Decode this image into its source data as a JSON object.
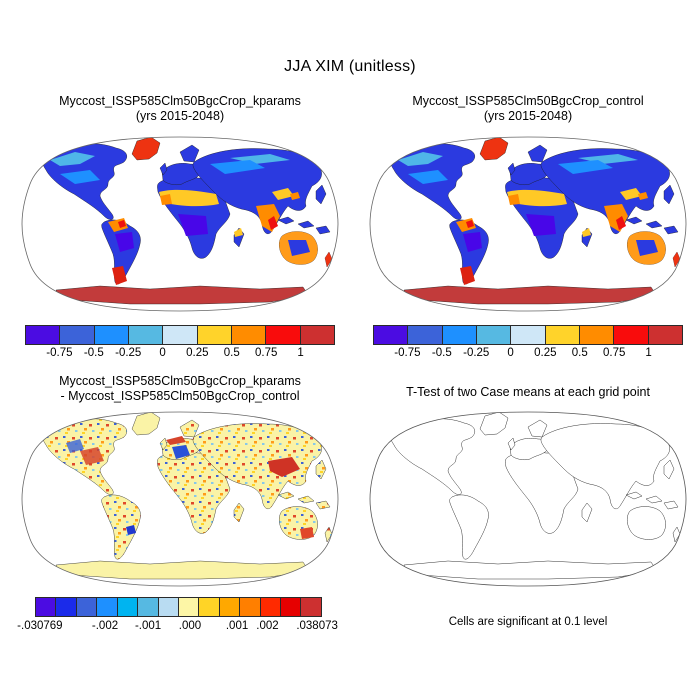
{
  "figure_title": "JJA XIM (unitless)",
  "panels": {
    "kparams": {
      "title": "Myccost_ISSP585Clm50BgcCrop_kparams",
      "subtitle": "(yrs 2015-2048)"
    },
    "control": {
      "title": "Myccost_ISSP585Clm50BgcCrop_control",
      "subtitle": "(yrs 2015-2048)"
    },
    "diff": {
      "title": "Myccost_ISSP585Clm50BgcCrop_kparams",
      "subtitle": "- Myccost_ISSP585Clm50BgcCrop_control"
    },
    "ttest": {
      "title": "T-Test of two Case means at each grid point",
      "caption": "Cells are significant at 0.1 level"
    }
  },
  "colorbars": {
    "main": {
      "colors": [
        "#4b0ce2",
        "#3c63d9",
        "#1e90ff",
        "#56b9e2",
        "#cfe7f7",
        "#ffd32a",
        "#ff8c00",
        "#f90c0c",
        "#cd3030"
      ],
      "ticks": [
        {
          "label": "-0.75",
          "pos": 0.111
        },
        {
          "label": "-0.5",
          "pos": 0.222
        },
        {
          "label": "-0.25",
          "pos": 0.333
        },
        {
          "label": "0",
          "pos": 0.444
        },
        {
          "label": "0.25",
          "pos": 0.556
        },
        {
          "label": "0.5",
          "pos": 0.667
        },
        {
          "label": "0.75",
          "pos": 0.778
        },
        {
          "label": "1",
          "pos": 0.889
        }
      ]
    },
    "diff": {
      "colors": [
        "#4b0ce2",
        "#1b2bea",
        "#3c63d9",
        "#1e90ff",
        "#00b4f0",
        "#56b9e2",
        "#b9dcf2",
        "#fdf6a6",
        "#ffd426",
        "#ffa800",
        "#ff7f00",
        "#ff2a00",
        "#e60000",
        "#cd3030"
      ],
      "ticks": [
        {
          "label": "-.030769",
          "pos": 0.017
        },
        {
          "label": "-.002",
          "pos": 0.244
        },
        {
          "label": "-.001",
          "pos": 0.394
        },
        {
          "label": ".000",
          "pos": 0.54
        },
        {
          "label": ".001",
          "pos": 0.704
        },
        {
          "label": ".002",
          "pos": 0.81
        },
        {
          "label": ".038073",
          "pos": 0.983
        }
      ]
    }
  },
  "chart_data": [
    {
      "type": "heatmap",
      "panel": "top-left",
      "title": "Myccost_ISSP585Clm50BgcCrop_kparams (yrs 2015-2048)",
      "variable": "JJA XIM (unitless)",
      "projection": "robinson world map, land-only shading",
      "colorbar_boundaries": [
        -0.75,
        -0.5,
        -0.25,
        0,
        0.25,
        0.5,
        0.75,
        1
      ],
      "colorbar_colors": [
        "#4b0ce2",
        "#3c63d9",
        "#1e90ff",
        "#56b9e2",
        "#cfe7f7",
        "#ffd32a",
        "#ff8c00",
        "#f90c0c",
        "#cd3030"
      ],
      "summary": "Most mid/high-latitude land deep blue (below -0.25); Sahel belt, India, Southeast Asia, NW South America and Australian rim yellow-orange (0.25-0.75); Greenland, southern South America, New Zealand and Antarctica red (above 0.75)."
    },
    {
      "type": "heatmap",
      "panel": "top-right",
      "title": "Myccost_ISSP585Clm50BgcCrop_control (yrs 2015-2048)",
      "variable": "JJA XIM (unitless)",
      "projection": "robinson world map, land-only shading",
      "colorbar_boundaries": [
        -0.75,
        -0.5,
        -0.25,
        0,
        0.25,
        0.5,
        0.75,
        1
      ],
      "colorbar_colors": [
        "#4b0ce2",
        "#3c63d9",
        "#1e90ff",
        "#56b9e2",
        "#cfe7f7",
        "#ffd32a",
        "#ff8c00",
        "#f90c0c",
        "#cd3030"
      ],
      "summary": "Visually identical pattern to the kparams case: blue continents, warm Sahel/India/SE-Asia band, red Greenland and Antarctica."
    },
    {
      "type": "heatmap",
      "panel": "bottom-left",
      "title": "Myccost_ISSP585Clm50BgcCrop_kparams - Myccost_ISSP585Clm50BgcCrop_control",
      "variable": "difference of JJA XIM (unitless)",
      "projection": "robinson world map, land-only shading",
      "value_range": [
        -0.030769,
        0.038073
      ],
      "colorbar_tick_labels": [
        "-.030769",
        "-.002",
        "-.001",
        ".000",
        ".001",
        ".002",
        ".038073"
      ],
      "colorbar_colors": [
        "#4b0ce2",
        "#1b2bea",
        "#3c63d9",
        "#1e90ff",
        "#00b4f0",
        "#56b9e2",
        "#b9dcf2",
        "#fdf6a6",
        "#ffd426",
        "#ffa800",
        "#ff7f00",
        "#ff2a00",
        "#e60000",
        "#cd3030"
      ],
      "summary": "Mostly near-zero pale yellow land with salt-and-pepper positive (orange/red) and negative (blue) speckles; strong red patch over east-central Asia, blue cluster over Europe, mixed noise over eastern North America and SE Australia; Antarctica and Greenland uniform pale yellow."
    },
    {
      "type": "map",
      "panel": "bottom-right",
      "title": "T-Test of two Case means at each grid point",
      "caption": "Cells are significant at 0.1 level",
      "summary": "Coastline outlines only; no grid cells shaded as significant."
    }
  ]
}
